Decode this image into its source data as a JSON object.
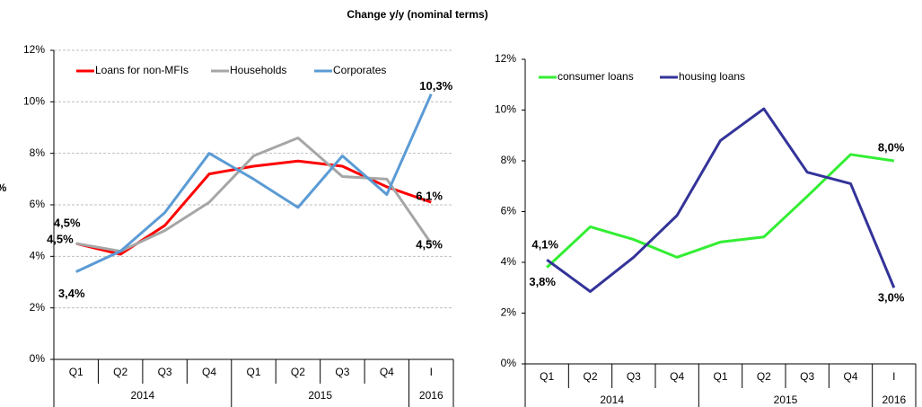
{
  "title": "Change y/y (nominal terms)",
  "chart_data": [
    {
      "type": "line",
      "ylabel": "%",
      "categories": [
        "Q1",
        "Q2",
        "Q3",
        "Q4",
        "Q1",
        "Q2",
        "Q3",
        "Q4",
        "I"
      ],
      "groups": [
        "2014",
        "2014",
        "2014",
        "2014",
        "2015",
        "2015",
        "2015",
        "2015",
        "2016"
      ],
      "ylim": [
        0,
        12
      ],
      "yticks": [
        {
          "value": 0,
          "label": "0%"
        },
        {
          "value": 2,
          "label": "2%"
        },
        {
          "value": 4,
          "label": "4%"
        },
        {
          "value": 6,
          "label": "6%"
        },
        {
          "value": 8,
          "label": "8%"
        },
        {
          "value": 10,
          "label": "10%"
        },
        {
          "value": 12,
          "label": "12%"
        }
      ],
      "grid": true,
      "legend": "top",
      "series": [
        {
          "name": "Loans for non-MFIs",
          "color": "#ff0000",
          "label_color": "#ff0000",
          "values": [
            4.5,
            4.08,
            5.2,
            7.2,
            7.5,
            7.7,
            7.5,
            6.7,
            6.1
          ],
          "value_labels": [
            "4,5%",
            null,
            null,
            null,
            null,
            null,
            null,
            null,
            "6,1%"
          ]
        },
        {
          "name": "Households",
          "color": "#a6a6a6",
          "label_color": "#000000",
          "values": [
            4.5,
            4.2,
            5.0,
            6.1,
            7.9,
            8.6,
            7.1,
            7.0,
            4.5
          ],
          "value_labels": [
            "4,5%",
            null,
            null,
            null,
            null,
            null,
            null,
            null,
            "4,5%"
          ]
        },
        {
          "name": "Corporates",
          "color": "#5b9bd5",
          "label_color": "#3c3c9c",
          "values": [
            3.4,
            4.2,
            5.7,
            8.0,
            7.0,
            5.9,
            7.9,
            6.4,
            10.3
          ],
          "value_labels": [
            "3,4%",
            null,
            null,
            null,
            null,
            null,
            null,
            null,
            "10,3%"
          ]
        }
      ]
    },
    {
      "type": "line",
      "categories": [
        "Q1",
        "Q2",
        "Q3",
        "Q4",
        "Q1",
        "Q2",
        "Q3",
        "Q4",
        "I"
      ],
      "groups": [
        "2014",
        "2014",
        "2014",
        "2014",
        "2015",
        "2015",
        "2015",
        "2015",
        "2016"
      ],
      "ylim": [
        0,
        12
      ],
      "yticks": [
        {
          "value": 0,
          "label": "0%"
        },
        {
          "value": 2,
          "label": "2%"
        },
        {
          "value": 4,
          "label": "4%"
        },
        {
          "value": 6,
          "label": "6%"
        },
        {
          "value": 8,
          "label": "8%"
        },
        {
          "value": 10,
          "label": "10%"
        },
        {
          "value": 12,
          "label": "12%"
        }
      ],
      "grid": false,
      "legend": "top",
      "series": [
        {
          "name": "consumer loans",
          "color": "#33ee33",
          "label_color": "#339966",
          "values": [
            3.8,
            5.4,
            4.9,
            4.2,
            4.8,
            5.0,
            6.6,
            8.25,
            8.0
          ],
          "value_labels": [
            "3,8%",
            null,
            null,
            null,
            null,
            null,
            null,
            null,
            "8,0%"
          ]
        },
        {
          "name": "housing loans",
          "color": "#333399",
          "label_color": "#0000cc",
          "values": [
            4.1,
            2.85,
            4.2,
            5.85,
            8.8,
            10.05,
            7.55,
            7.1,
            3.0
          ],
          "value_labels": [
            "4,1%",
            null,
            null,
            null,
            null,
            null,
            null,
            null,
            "3,0%"
          ]
        }
      ]
    }
  ]
}
